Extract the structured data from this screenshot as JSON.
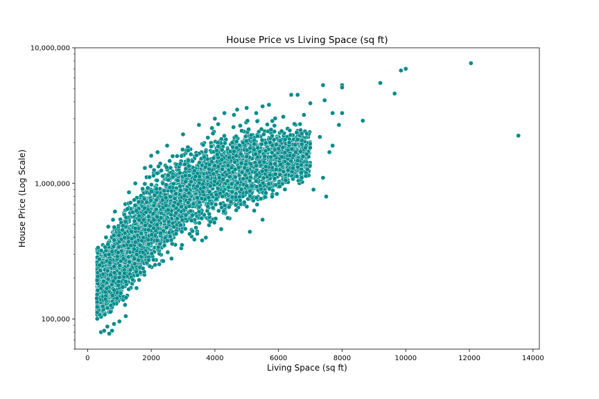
{
  "chart_data": {
    "type": "scatter",
    "title": "House Price vs Living Space (sq ft)",
    "xlabel": "Living Space (sq ft)",
    "ylabel": "House Price (Log Scale)",
    "xlim": [
      -400,
      14200
    ],
    "ylim": [
      60000,
      10000000
    ],
    "yscale": "log",
    "grid": false,
    "marker_color": "#008b8b",
    "marker_edge_color": "#ffffff",
    "x_ticks": [
      0,
      2000,
      4000,
      6000,
      8000,
      10000,
      12000,
      14000
    ],
    "x_tick_labels": [
      "0",
      "2000",
      "4000",
      "6000",
      "8000",
      "10000",
      "12000",
      "14000"
    ],
    "y_ticks": [
      100000,
      1000000,
      10000000
    ],
    "y_tick_labels": [
      "100,000",
      "1,000,000",
      "10,000,000"
    ],
    "points": [
      [
        290,
        142000
      ],
      [
        370,
        276000
      ],
      [
        380,
        250000
      ],
      [
        400,
        228000
      ],
      [
        420,
        80000
      ],
      [
        430,
        320000
      ],
      [
        480,
        124000
      ],
      [
        500,
        190000
      ],
      [
        520,
        82000
      ],
      [
        540,
        108000
      ],
      [
        560,
        140000
      ],
      [
        580,
        400000
      ],
      [
        600,
        168000
      ],
      [
        620,
        88000
      ],
      [
        650,
        480000
      ],
      [
        680,
        78000
      ],
      [
        700,
        260000
      ],
      [
        720,
        113000
      ],
      [
        770,
        82000
      ],
      [
        800,
        540000
      ],
      [
        830,
        92000
      ],
      [
        860,
        620000
      ],
      [
        1000,
        96000
      ],
      [
        1200,
        105000
      ],
      [
        1300,
        860000
      ],
      [
        1500,
        1000000
      ],
      [
        1800,
        1300000
      ],
      [
        2000,
        1600000
      ],
      [
        2200,
        1700000
      ],
      [
        2500,
        1900000
      ],
      [
        3000,
        2300000
      ],
      [
        3500,
        2700000
      ],
      [
        3600,
        380000
      ],
      [
        4000,
        3000000
      ],
      [
        4200,
        460000
      ],
      [
        4300,
        3300000
      ],
      [
        4600,
        3200000
      ],
      [
        4700,
        3500000
      ],
      [
        5000,
        3600000
      ],
      [
        5100,
        440000
      ],
      [
        5300,
        3300000
      ],
      [
        5500,
        3700000
      ],
      [
        5500,
        540000
      ],
      [
        5700,
        3800000
      ],
      [
        5800,
        800000
      ],
      [
        6000,
        1800000
      ],
      [
        6150,
        3100000
      ],
      [
        6400,
        4500000
      ],
      [
        6600,
        4500000
      ],
      [
        6800,
        3200000
      ],
      [
        7000,
        3900000
      ],
      [
        7100,
        900000
      ],
      [
        7300,
        2200000
      ],
      [
        7400,
        5300000
      ],
      [
        7400,
        1100000
      ],
      [
        7450,
        4100000
      ],
      [
        7500,
        800000
      ],
      [
        7600,
        1700000
      ],
      [
        7700,
        3300000
      ],
      [
        7700,
        1900000
      ],
      [
        7900,
        2700000
      ],
      [
        8000,
        5300000
      ],
      [
        8000,
        5100000
      ],
      [
        8000,
        3300000
      ],
      [
        8650,
        2900000
      ],
      [
        9200,
        5500000
      ],
      [
        9650,
        4600000
      ],
      [
        9850,
        6800000
      ],
      [
        10000,
        7000000
      ],
      [
        12050,
        7700000
      ],
      [
        13540,
        2250000
      ]
    ],
    "dense_region": {
      "x_range": [
        300,
        7000
      ],
      "price_at_x_low": [
        [
          500,
          90000
        ],
        [
          1000,
          105000
        ],
        [
          1500,
          150000
        ],
        [
          2000,
          200000
        ],
        [
          3000,
          300000
        ],
        [
          4000,
          410000
        ],
        [
          5000,
          520000
        ],
        [
          6000,
          700000
        ],
        [
          7000,
          900000
        ]
      ],
      "price_at_x_high": [
        [
          500,
          360000
        ],
        [
          1000,
          700000
        ],
        [
          1500,
          1000000
        ],
        [
          2000,
          1400000
        ],
        [
          3000,
          2200000
        ],
        [
          4000,
          3000000
        ],
        [
          5000,
          3500000
        ],
        [
          6000,
          3300000
        ],
        [
          7000,
          3000000
        ]
      ],
      "count": 5200
    }
  }
}
